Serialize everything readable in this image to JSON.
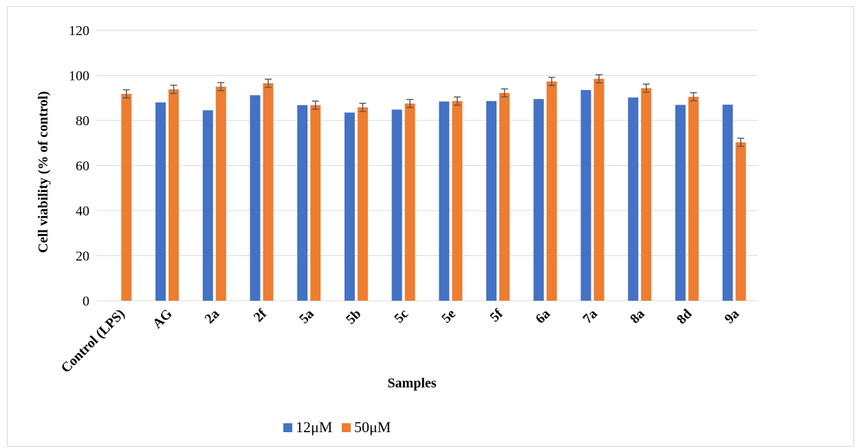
{
  "chart_data": {
    "type": "bar",
    "title": "",
    "xlabel": "Samples",
    "ylabel": "Cell viability (% of control)",
    "ylim": [
      0,
      120
    ],
    "yticks": [
      0,
      20,
      40,
      60,
      80,
      100,
      120
    ],
    "grid": true,
    "legend_position": "bottom",
    "categories": [
      "Control (LPS)",
      "AG",
      "2a",
      "2f",
      "5a",
      "5b",
      "5c",
      "5e",
      "5f",
      "6a",
      "7a",
      "8a",
      "8d",
      "9a"
    ],
    "series": [
      {
        "name": "12μM",
        "color": "#4472C4",
        "values": [
          null,
          88,
          84.5,
          91.2,
          86.8,
          83.5,
          84.8,
          88.4,
          88.6,
          89.5,
          93.5,
          90.2,
          86.9,
          87
        ],
        "errors": [
          null,
          null,
          null,
          null,
          null,
          null,
          null,
          null,
          null,
          null,
          null,
          null,
          null,
          null
        ]
      },
      {
        "name": "50μM",
        "color": "#ED7D31",
        "values": [
          91.8,
          93.8,
          95,
          96.5,
          86.8,
          85.8,
          87.5,
          88.6,
          92.2,
          97.3,
          98.5,
          94.3,
          90.5,
          70.3
        ],
        "errors": [
          1.8,
          1.8,
          1.8,
          1.8,
          1.8,
          1.8,
          1.8,
          1.8,
          1.8,
          1.8,
          1.8,
          1.8,
          1.8,
          1.8
        ]
      }
    ]
  }
}
